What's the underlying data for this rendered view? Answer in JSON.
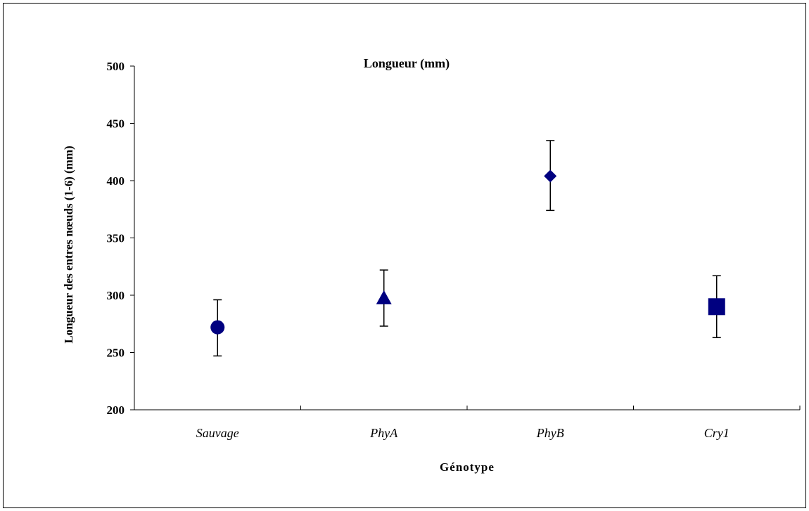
{
  "chart_data": {
    "type": "scatter",
    "title": "Longueur (mm)",
    "xlabel": "Génotype",
    "ylabel": "Longueur des entres nœuds (1-6) (mm)",
    "categories": [
      "Sauvage",
      "PhyA",
      "PhyB",
      "Cry1"
    ],
    "values": [
      272,
      297,
      404,
      290
    ],
    "error_low": [
      247,
      273,
      374,
      263
    ],
    "error_high": [
      296,
      322,
      435,
      317
    ],
    "markers": [
      "circle",
      "triangle",
      "diamond",
      "square"
    ],
    "ylim": [
      200,
      500
    ],
    "yticks": [
      200,
      250,
      300,
      350,
      400,
      450,
      500
    ],
    "grid": false,
    "legend": "none",
    "marker_color": "#000080"
  }
}
